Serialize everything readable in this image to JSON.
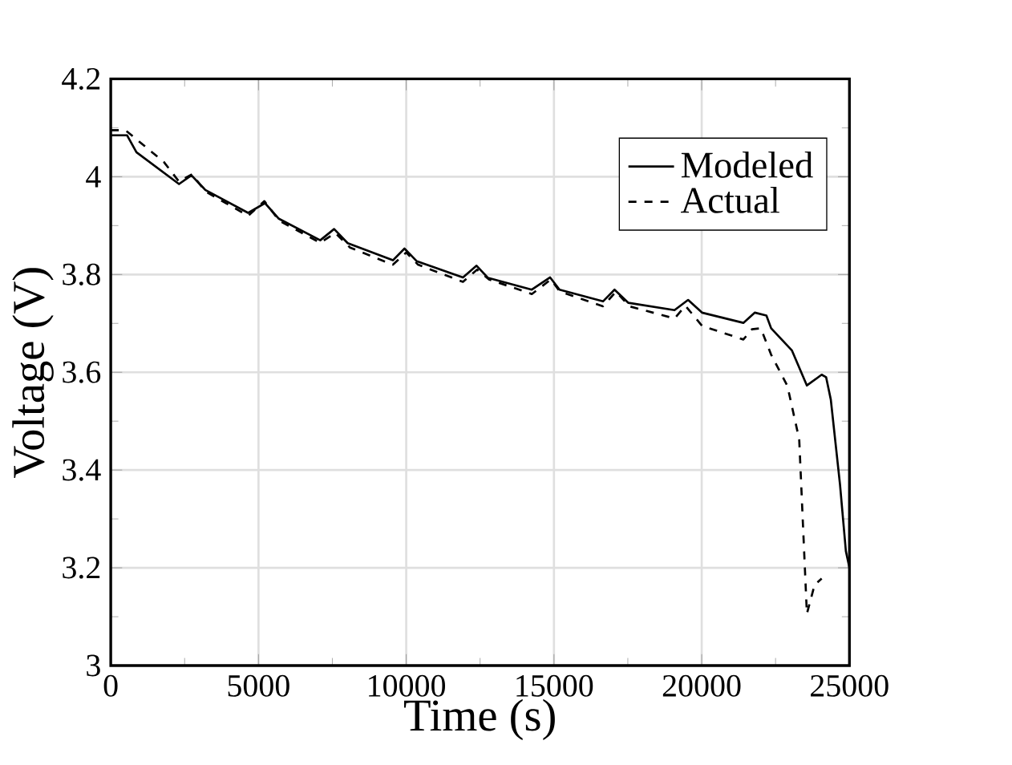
{
  "chart_data": {
    "type": "line",
    "xlabel": "Time (s)",
    "ylabel": "Voltage (V)",
    "xlim": [
      0,
      25000
    ],
    "ylim": [
      3,
      4.2
    ],
    "xticks": [
      0,
      5000,
      10000,
      15000,
      20000,
      25000
    ],
    "yticks": [
      3,
      3.2,
      3.4,
      3.6,
      3.8,
      4,
      4.2
    ],
    "grid": true,
    "legend": "top right",
    "marker": "none",
    "series": [
      {
        "name": "Modeled",
        "color": "#000000",
        "line_style": "solid",
        "x": [
          0,
          550,
          870,
          2310,
          2730,
          3200,
          4650,
          5220,
          5690,
          7090,
          7560,
          8020,
          9550,
          9940,
          10360,
          11920,
          12380,
          12770,
          14250,
          14870,
          15190,
          16660,
          17050,
          17520,
          19080,
          19540,
          20010,
          21410,
          21800,
          22190,
          22350,
          23050,
          23560,
          24060,
          24210,
          24370,
          24680,
          24880,
          25000
        ],
        "values": [
          4.085,
          4.085,
          4.05,
          3.985,
          4.003,
          3.973,
          3.926,
          3.946,
          3.914,
          3.87,
          3.893,
          3.864,
          3.829,
          3.853,
          3.827,
          3.794,
          3.818,
          3.793,
          3.769,
          3.794,
          3.769,
          3.745,
          3.769,
          3.742,
          3.727,
          3.748,
          3.722,
          3.701,
          3.722,
          3.716,
          3.69,
          3.645,
          3.573,
          3.595,
          3.59,
          3.544,
          3.371,
          3.234,
          3.2
        ]
      },
      {
        "name": "Actual",
        "color": "#000000",
        "line_style": "dashed",
        "x": [
          0,
          500,
          900,
          1800,
          2310,
          2750,
          3200,
          4650,
          5200,
          5700,
          7090,
          7600,
          8100,
          9550,
          10000,
          10400,
          11920,
          12400,
          12800,
          14250,
          14900,
          15200,
          16660,
          17100,
          17550,
          19080,
          19450,
          20010,
          21410,
          21700,
          22000,
          22350,
          22900,
          23300,
          23560,
          23820,
          24060
        ],
        "values": [
          4.095,
          4.095,
          4.075,
          4.03,
          3.99,
          4.005,
          3.97,
          3.92,
          3.95,
          3.91,
          3.865,
          3.885,
          3.855,
          3.82,
          3.845,
          3.82,
          3.785,
          3.81,
          3.79,
          3.76,
          3.79,
          3.765,
          3.735,
          3.765,
          3.735,
          3.71,
          3.736,
          3.695,
          3.667,
          3.688,
          3.69,
          3.636,
          3.572,
          3.463,
          3.106,
          3.165,
          3.178
        ]
      }
    ]
  }
}
